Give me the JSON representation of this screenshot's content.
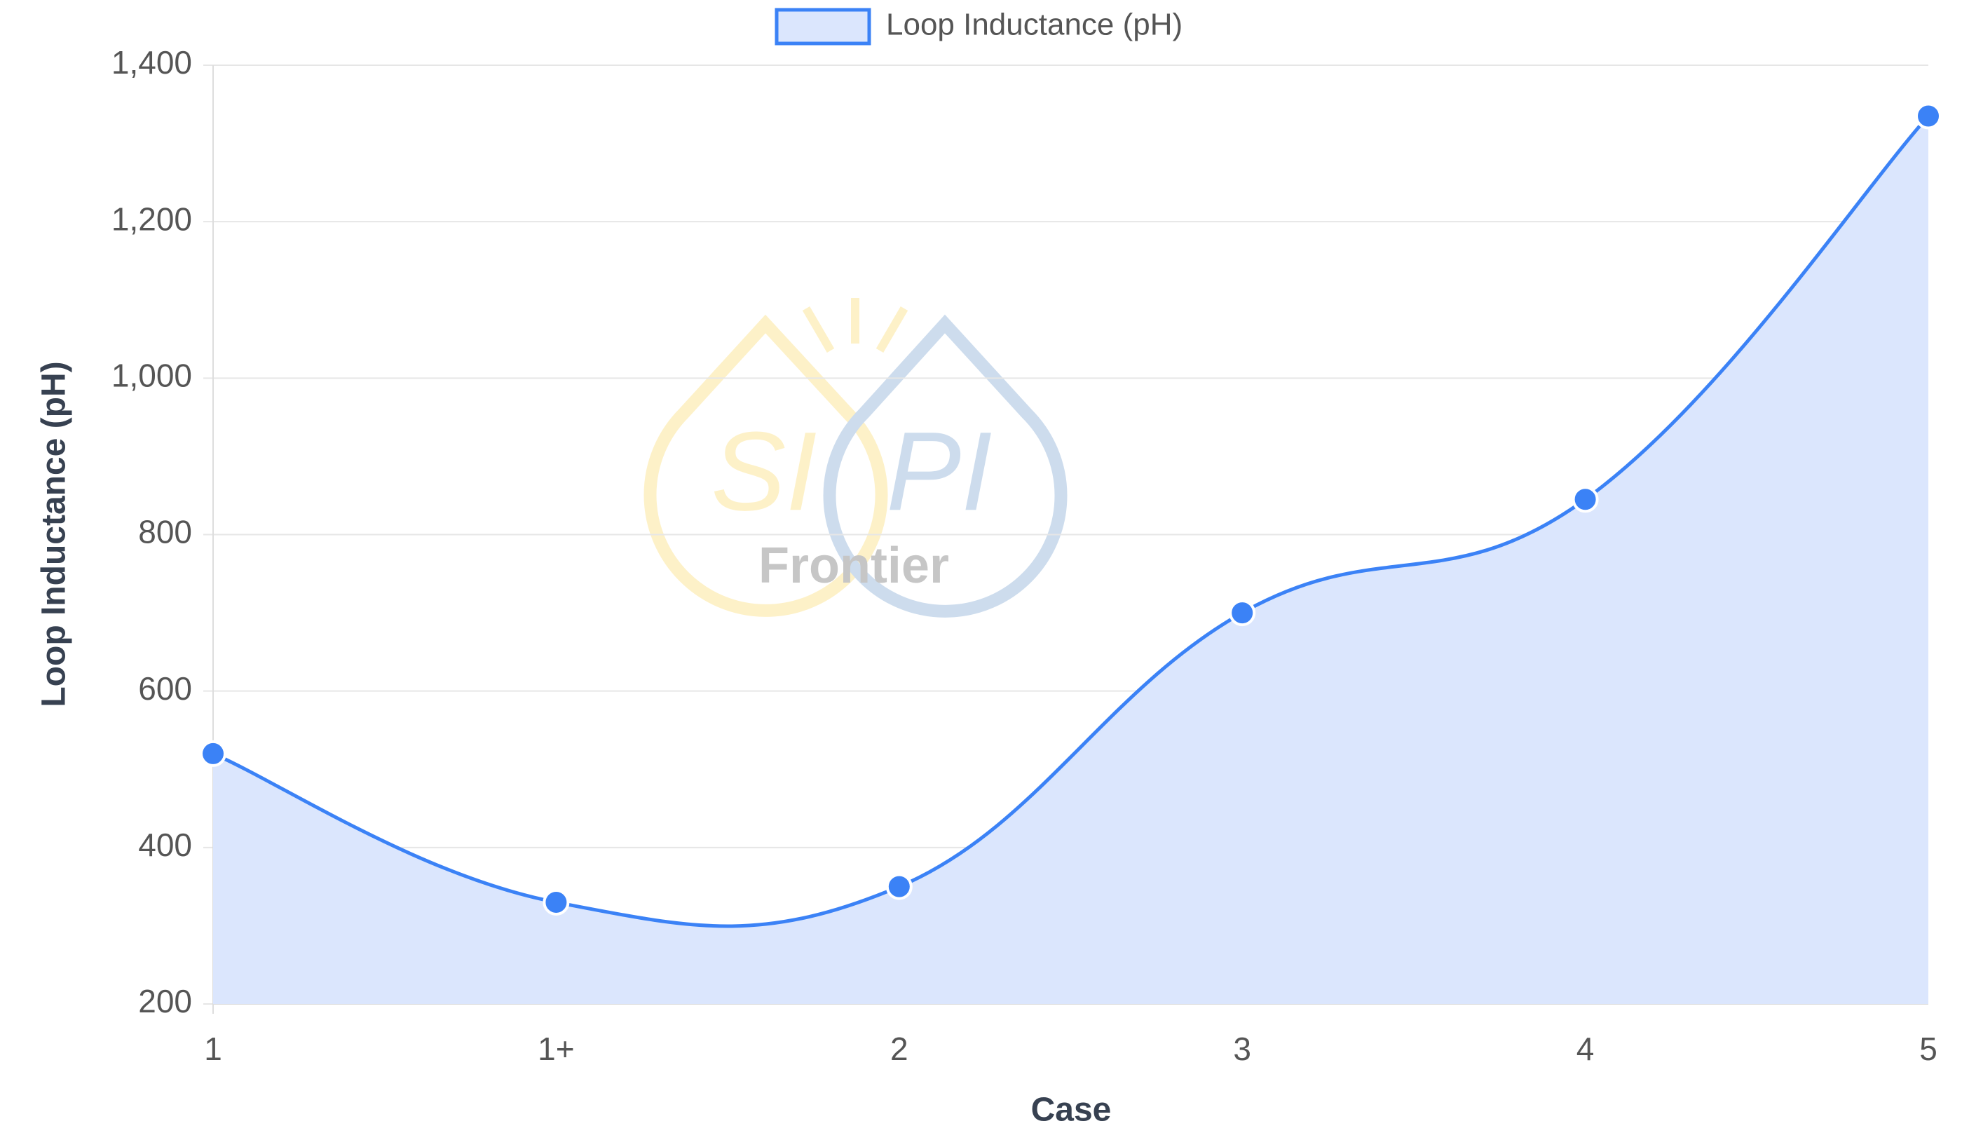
{
  "chart_data": {
    "type": "line",
    "x_label": "Case",
    "y_label": "Loop Inductance (pH)",
    "categories": [
      "1",
      "1+",
      "2",
      "3",
      "4",
      "5"
    ],
    "series": [
      {
        "name": "Loop Inductance (pH)",
        "color": "#3b82f6",
        "fill": "#dbe6fd",
        "values": [
          520,
          330,
          350,
          700,
          845,
          1335
        ]
      }
    ],
    "ylim": [
      200,
      1400
    ],
    "yticks": [
      200,
      400,
      600,
      800,
      {
        "value": 1000,
        "label": "1,000"
      },
      {
        "value": 1200,
        "label": "1,200"
      },
      {
        "value": 1400,
        "label": "1,400"
      }
    ],
    "grid": true,
    "legend": "top"
  },
  "watermark": {
    "left": "SI",
    "right": "PI",
    "sub": "Frontier"
  }
}
